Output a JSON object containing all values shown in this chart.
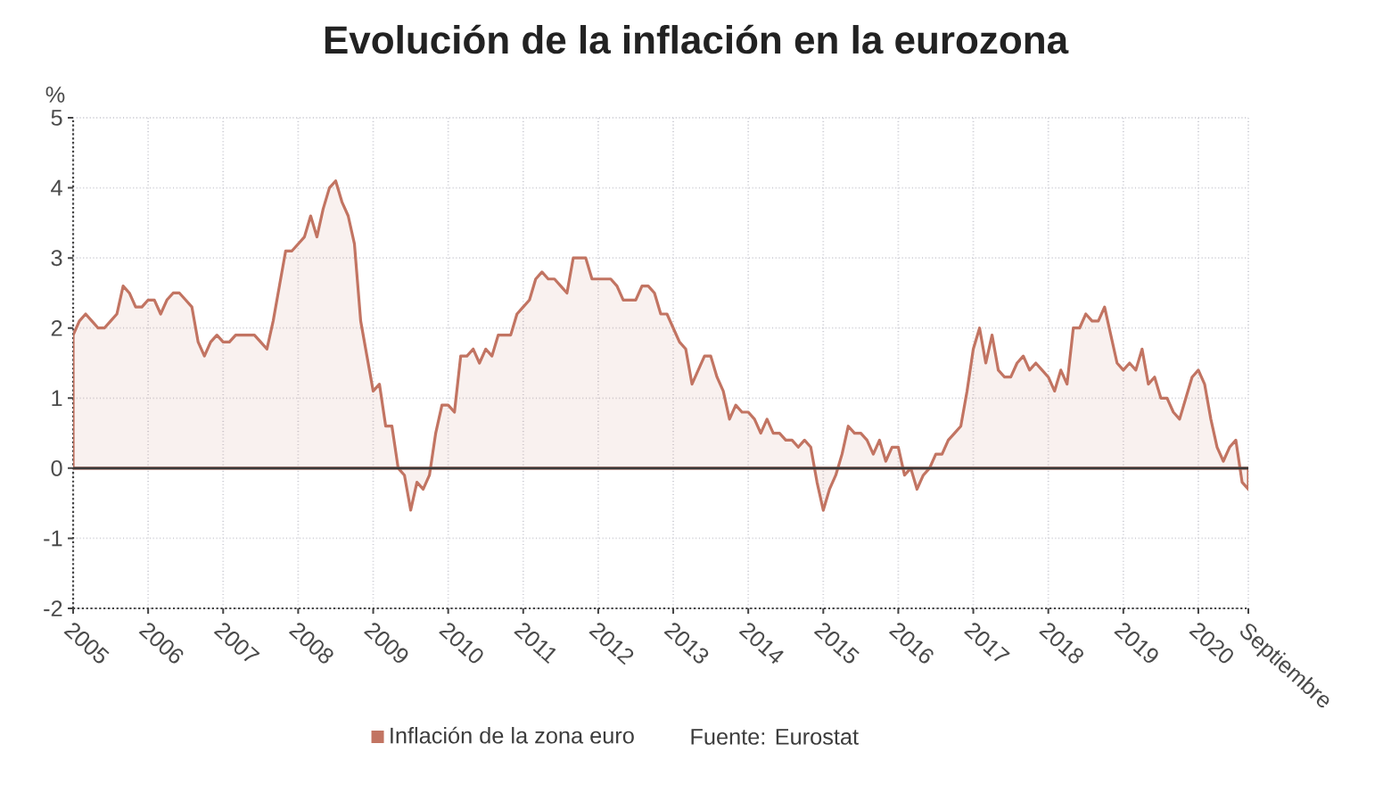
{
  "chart_data": {
    "type": "area",
    "title": "Evolución de la inflación en la eurozona",
    "ylabel": "%",
    "x": [
      "2005-01",
      "2005-02",
      "2005-03",
      "2005-04",
      "2005-05",
      "2005-06",
      "2005-07",
      "2005-08",
      "2005-09",
      "2005-10",
      "2005-11",
      "2005-12",
      "2006-01",
      "2006-02",
      "2006-03",
      "2006-04",
      "2006-05",
      "2006-06",
      "2006-07",
      "2006-08",
      "2006-09",
      "2006-10",
      "2006-11",
      "2006-12",
      "2007-01",
      "2007-02",
      "2007-03",
      "2007-04",
      "2007-05",
      "2007-06",
      "2007-07",
      "2007-08",
      "2007-09",
      "2007-10",
      "2007-11",
      "2007-12",
      "2008-01",
      "2008-02",
      "2008-03",
      "2008-04",
      "2008-05",
      "2008-06",
      "2008-07",
      "2008-08",
      "2008-09",
      "2008-10",
      "2008-11",
      "2008-12",
      "2009-01",
      "2009-02",
      "2009-03",
      "2009-04",
      "2009-05",
      "2009-06",
      "2009-07",
      "2009-08",
      "2009-09",
      "2009-10",
      "2009-11",
      "2009-12",
      "2010-01",
      "2010-02",
      "2010-03",
      "2010-04",
      "2010-05",
      "2010-06",
      "2010-07",
      "2010-08",
      "2010-09",
      "2010-10",
      "2010-11",
      "2010-12",
      "2011-01",
      "2011-02",
      "2011-03",
      "2011-04",
      "2011-05",
      "2011-06",
      "2011-07",
      "2011-08",
      "2011-09",
      "2011-10",
      "2011-11",
      "2011-12",
      "2012-01",
      "2012-02",
      "2012-03",
      "2012-04",
      "2012-05",
      "2012-06",
      "2012-07",
      "2012-08",
      "2012-09",
      "2012-10",
      "2012-11",
      "2012-12",
      "2013-01",
      "2013-02",
      "2013-03",
      "2013-04",
      "2013-05",
      "2013-06",
      "2013-07",
      "2013-08",
      "2013-09",
      "2013-10",
      "2013-11",
      "2013-12",
      "2014-01",
      "2014-02",
      "2014-03",
      "2014-04",
      "2014-05",
      "2014-06",
      "2014-07",
      "2014-08",
      "2014-09",
      "2014-10",
      "2014-11",
      "2014-12",
      "2015-01",
      "2015-02",
      "2015-03",
      "2015-04",
      "2015-05",
      "2015-06",
      "2015-07",
      "2015-08",
      "2015-09",
      "2015-10",
      "2015-11",
      "2015-12",
      "2016-01",
      "2016-02",
      "2016-03",
      "2016-04",
      "2016-05",
      "2016-06",
      "2016-07",
      "2016-08",
      "2016-09",
      "2016-10",
      "2016-11",
      "2016-12",
      "2017-01",
      "2017-02",
      "2017-03",
      "2017-04",
      "2017-05",
      "2017-06",
      "2017-07",
      "2017-08",
      "2017-09",
      "2017-10",
      "2017-11",
      "2017-12",
      "2018-01",
      "2018-02",
      "2018-03",
      "2018-04",
      "2018-05",
      "2018-06",
      "2018-07",
      "2018-08",
      "2018-09",
      "2018-10",
      "2018-11",
      "2018-12",
      "2019-01",
      "2019-02",
      "2019-03",
      "2019-04",
      "2019-05",
      "2019-06",
      "2019-07",
      "2019-08",
      "2019-09",
      "2019-10",
      "2019-11",
      "2019-12",
      "2020-01",
      "2020-02",
      "2020-03",
      "2020-04",
      "2020-05",
      "2020-06",
      "2020-07",
      "2020-08",
      "2020-09"
    ],
    "series": [
      {
        "name": "Inflación de la zona euro",
        "color": "#c27462",
        "values": [
          1.9,
          2.1,
          2.2,
          2.1,
          2.0,
          2.0,
          2.1,
          2.2,
          2.6,
          2.5,
          2.3,
          2.3,
          2.4,
          2.4,
          2.2,
          2.4,
          2.5,
          2.5,
          2.4,
          2.3,
          1.8,
          1.6,
          1.8,
          1.9,
          1.8,
          1.8,
          1.9,
          1.9,
          1.9,
          1.9,
          1.8,
          1.7,
          2.1,
          2.6,
          3.1,
          3.1,
          3.2,
          3.3,
          3.6,
          3.3,
          3.7,
          4.0,
          4.1,
          3.8,
          3.6,
          3.2,
          2.1,
          1.6,
          1.1,
          1.2,
          0.6,
          0.6,
          0.0,
          -0.1,
          -0.6,
          -0.2,
          -0.3,
          -0.1,
          0.5,
          0.9,
          0.9,
          0.8,
          1.6,
          1.6,
          1.7,
          1.5,
          1.7,
          1.6,
          1.9,
          1.9,
          1.9,
          2.2,
          2.3,
          2.4,
          2.7,
          2.8,
          2.7,
          2.7,
          2.6,
          2.5,
          3.0,
          3.0,
          3.0,
          2.7,
          2.7,
          2.7,
          2.7,
          2.6,
          2.4,
          2.4,
          2.4,
          2.6,
          2.6,
          2.5,
          2.2,
          2.2,
          2.0,
          1.8,
          1.7,
          1.2,
          1.4,
          1.6,
          1.6,
          1.3,
          1.1,
          0.7,
          0.9,
          0.8,
          0.8,
          0.7,
          0.5,
          0.7,
          0.5,
          0.5,
          0.4,
          0.4,
          0.3,
          0.4,
          0.3,
          -0.2,
          -0.6,
          -0.3,
          -0.1,
          0.2,
          0.6,
          0.5,
          0.5,
          0.4,
          0.2,
          0.4,
          0.1,
          0.3,
          0.3,
          -0.1,
          0.0,
          -0.3,
          -0.1,
          0.0,
          0.2,
          0.2,
          0.4,
          0.5,
          0.6,
          1.1,
          1.7,
          2.0,
          1.5,
          1.9,
          1.4,
          1.3,
          1.3,
          1.5,
          1.6,
          1.4,
          1.5,
          1.4,
          1.3,
          1.1,
          1.4,
          1.2,
          2.0,
          2.0,
          2.2,
          2.1,
          2.1,
          2.3,
          1.9,
          1.5,
          1.4,
          1.5,
          1.4,
          1.7,
          1.2,
          1.3,
          1.0,
          1.0,
          0.8,
          0.7,
          1.0,
          1.3,
          1.4,
          1.2,
          0.7,
          0.3,
          0.1,
          0.3,
          0.4,
          -0.2,
          -0.3
        ]
      }
    ],
    "xlim": [
      "2005-01",
      "2020-09"
    ],
    "xticks": [
      "2005",
      "2006",
      "2007",
      "2008",
      "2009",
      "2010",
      "2011",
      "2012",
      "2013",
      "2014",
      "2015",
      "2016",
      "2017",
      "2018",
      "2019",
      "2020",
      {
        "value": "2020-09",
        "label": "Septiembre"
      }
    ],
    "ylim": [
      -2,
      5
    ],
    "yticks": [
      -2,
      -1,
      0,
      1,
      2,
      3,
      4,
      5
    ],
    "ref_lines": [
      {
        "axis": "y",
        "value": 0
      }
    ],
    "grid": true,
    "legend": "bottom",
    "annotations": [
      "Fuente: Eurostat"
    ]
  }
}
